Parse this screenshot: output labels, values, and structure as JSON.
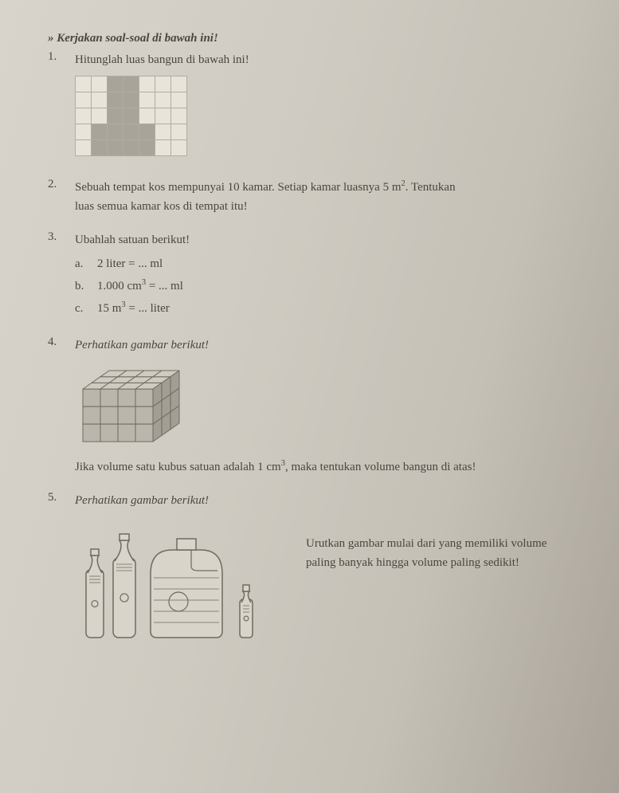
{
  "header_prefix": "» Kerjakan soal-soal di bawah ini!",
  "q1": {
    "num": "1.",
    "text": "Hitunglah luas bangun di bawah ini!",
    "grid": {
      "cols": 7,
      "rows": 5,
      "cell": 20,
      "stroke": "#b0aca2",
      "fill": "#a8a49a",
      "bg": "#e8e4da",
      "filled_cells": [
        [
          0,
          2
        ],
        [
          0,
          3
        ],
        [
          1,
          2
        ],
        [
          1,
          3
        ],
        [
          2,
          2
        ],
        [
          2,
          3
        ],
        [
          3,
          1
        ],
        [
          3,
          2
        ],
        [
          3,
          3
        ],
        [
          3,
          4
        ],
        [
          4,
          1
        ],
        [
          4,
          2
        ],
        [
          4,
          3
        ],
        [
          4,
          4
        ]
      ]
    }
  },
  "q2": {
    "num": "2.",
    "text_a": "Sebuah tempat kos mempunyai 10 kamar. Setiap kamar luasnya 5 m",
    "text_a_sup": "2",
    "text_a_end": ". Tentukan",
    "text_b": "luas semua kamar kos di tempat itu!"
  },
  "q3": {
    "num": "3.",
    "text": "Ubahlah satuan berikut!",
    "subs": [
      {
        "lbl": "a.",
        "lhs": "2 liter",
        "rhs": "ml"
      },
      {
        "lbl": "b.",
        "lhs": "1.000 cm",
        "sup": "3",
        "rhs": "ml"
      },
      {
        "lbl": "c.",
        "lhs": "15 m",
        "sup": "3",
        "rhs": "liter"
      }
    ]
  },
  "q4": {
    "num": "4.",
    "title": "Perhatikan gambar berikut!",
    "cube": {
      "nx": 4,
      "ny": 3,
      "nz": 3,
      "cell": 22,
      "face_top": "#cfcbc1",
      "face_front": "#bab6ac",
      "face_side": "#a29e94",
      "stroke": "#6f6b62"
    },
    "caption_a": "Jika volume satu kubus satuan adalah 1 cm",
    "caption_sup": "3",
    "caption_b": ", maka tentukan volume bangun di atas!"
  },
  "q5": {
    "num": "5.",
    "title": "Perhatikan gambar berikut!",
    "right_a": "Urutkan gambar mulai dari yang memiliki volume",
    "right_b": "paling banyak hingga volume paling sedikit!",
    "bottle_stroke": "#6f6b62",
    "bottle_fill": "#d8d4ca"
  }
}
